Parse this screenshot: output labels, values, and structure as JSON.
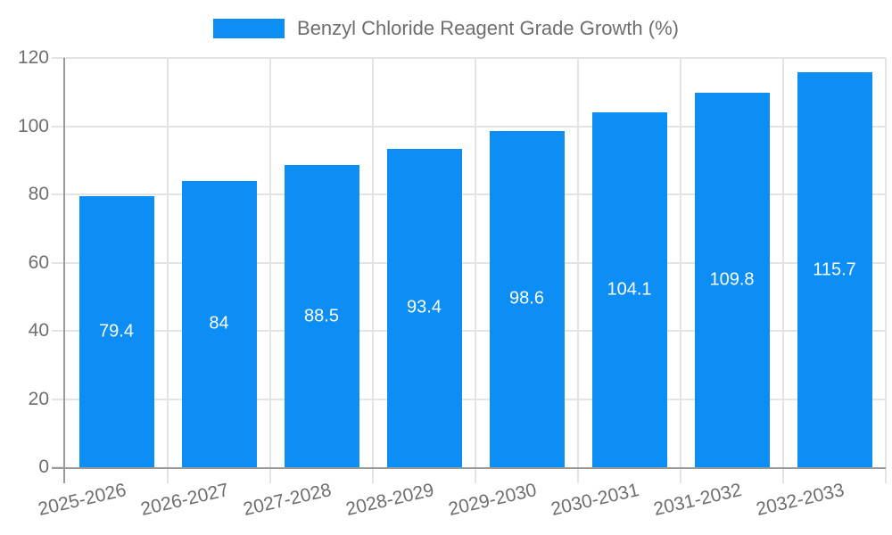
{
  "chart_data": {
    "type": "bar",
    "title": "Benzyl Chloride Reagent Grade Growth (%)",
    "categories": [
      "2025-2026",
      "2026-2027",
      "2027-2028",
      "2028-2029",
      "2029-2030",
      "2030-2031",
      "2031-2032",
      "2032-2033"
    ],
    "values": [
      79.4,
      84,
      88.5,
      93.4,
      98.6,
      104.1,
      109.8,
      115.7
    ],
    "value_labels": [
      "79.4",
      "84",
      "88.5",
      "93.4",
      "98.6",
      "104.1",
      "109.8",
      "115.7"
    ],
    "xlabel": "",
    "ylabel": "",
    "ylim": [
      0,
      120
    ],
    "ytick_step": 20,
    "ytick_labels": [
      "0",
      "20",
      "40",
      "60",
      "80",
      "100",
      "120"
    ],
    "grid": true,
    "legend_position": "top",
    "colors": {
      "bar": "#0d8ef5",
      "axis": "#9a9a9a",
      "grid": "#e4e4e4",
      "text": "#6e6e6e",
      "value_label": "#ffffff",
      "background": "#ffffff"
    }
  }
}
